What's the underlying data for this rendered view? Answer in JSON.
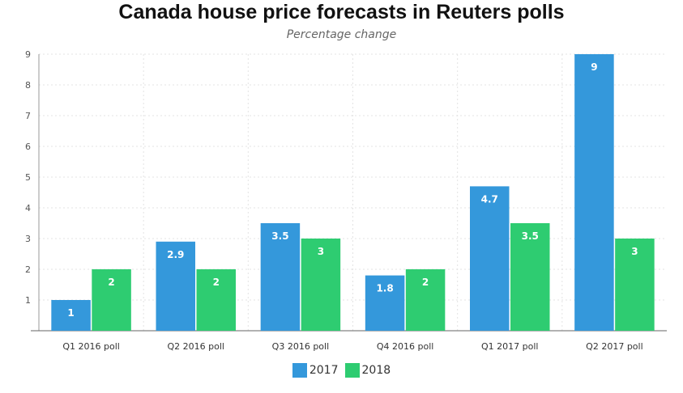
{
  "chart_data": {
    "type": "bar",
    "title": "Canada house price forecasts in Reuters polls",
    "subtitle": "Percentage change",
    "xlabel": "",
    "ylabel": "",
    "categories": [
      "Q1 2016 poll",
      "Q2 2016 poll",
      "Q3 2016 poll",
      "Q4 2016 poll",
      "Q1 2017 poll",
      "Q2 2017 poll"
    ],
    "series": [
      {
        "name": "2017",
        "color": "#3498db",
        "values": [
          1,
          2.9,
          3.5,
          1.8,
          4.7,
          9
        ]
      },
      {
        "name": "2018",
        "color": "#2ecc71",
        "values": [
          2,
          2,
          3,
          2,
          3.5,
          3
        ]
      }
    ],
    "ylim": [
      0,
      9
    ],
    "yticks": [
      "1",
      "2",
      "3",
      "4",
      "5",
      "6",
      "7",
      "8",
      "9"
    ],
    "grid": true,
    "legend_position": "bottom"
  }
}
